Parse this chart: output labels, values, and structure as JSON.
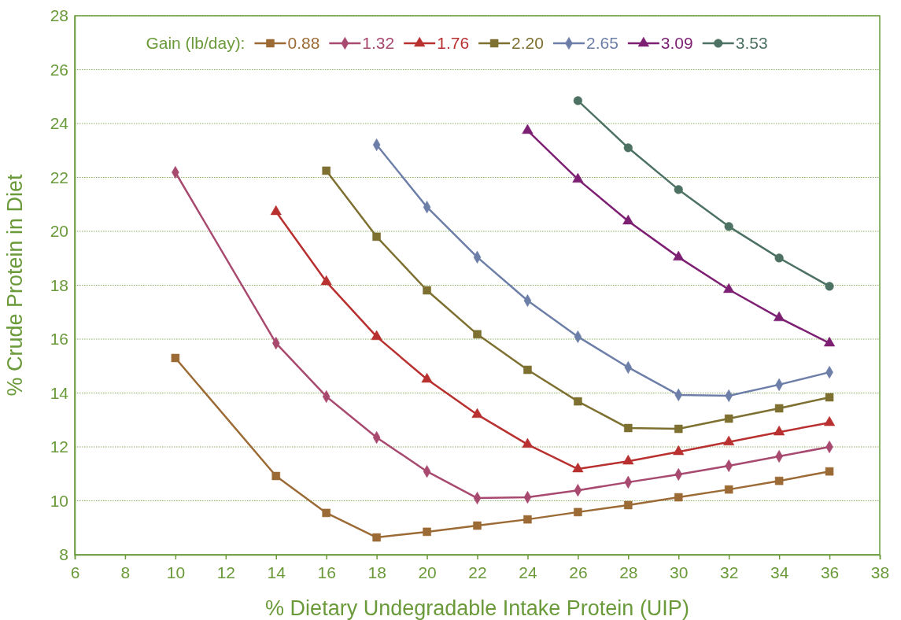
{
  "chart_data": {
    "type": "line",
    "xlabel": "% Dietary Undegradable Intake Protein (UIP)",
    "ylabel": "% Crude Protein in Diet",
    "legend_title": "Gain (lb/day):",
    "legend": "top",
    "grid": "y",
    "line_style": "solid",
    "xlim": [
      6,
      38
    ],
    "xticks": [
      6,
      8,
      10,
      12,
      14,
      16,
      18,
      20,
      22,
      24,
      26,
      28,
      30,
      32,
      34,
      36,
      38
    ],
    "ylim": [
      8,
      28
    ],
    "yticks": [
      8,
      10,
      12,
      14,
      16,
      18,
      20,
      22,
      24,
      26,
      28
    ],
    "series": [
      {
        "name": "0.88",
        "color": "#9c6a35",
        "marker": "square",
        "x": [
          10,
          14,
          16,
          18,
          20,
          22,
          24,
          26,
          28,
          30,
          32,
          34,
          36
        ],
        "values": [
          15.3,
          10.92,
          9.55,
          8.64,
          8.85,
          9.08,
          9.31,
          9.58,
          9.84,
          10.13,
          10.42,
          10.74,
          11.09
        ]
      },
      {
        "name": "1.32",
        "color": "#a8496f",
        "marker": "diamond",
        "x": [
          10,
          14,
          16,
          18,
          20,
          22,
          24,
          26,
          28,
          30,
          32,
          34,
          36
        ],
        "values": [
          22.19,
          15.85,
          13.87,
          12.35,
          11.09,
          10.1,
          10.13,
          10.39,
          10.69,
          10.98,
          11.3,
          11.65,
          12.0
        ]
      },
      {
        "name": "1.76",
        "color": "#b8302f",
        "marker": "triangle",
        "x": [
          14,
          16,
          18,
          20,
          22,
          24,
          26,
          28,
          30,
          32,
          34,
          36
        ],
        "values": [
          20.73,
          18.13,
          16.09,
          14.51,
          13.2,
          12.09,
          11.18,
          11.47,
          11.82,
          12.18,
          12.55,
          12.9
        ]
      },
      {
        "name": "2.20",
        "color": "#7d7030",
        "marker": "square",
        "x": [
          16,
          18,
          20,
          22,
          24,
          26,
          28,
          30,
          32,
          34,
          36
        ],
        "values": [
          22.25,
          19.8,
          17.81,
          16.18,
          14.86,
          13.69,
          12.7,
          12.67,
          13.05,
          13.43,
          13.84
        ]
      },
      {
        "name": "2.65",
        "color": "#6d7fa8",
        "marker": "diamond",
        "x": [
          18,
          20,
          22,
          24,
          26,
          28,
          30,
          32,
          34,
          36
        ],
        "values": [
          23.21,
          20.9,
          19.04,
          17.43,
          16.09,
          14.95,
          13.93,
          13.9,
          14.31,
          14.77
        ]
      },
      {
        "name": "3.09",
        "color": "#7d1f73",
        "marker": "triangle",
        "x": [
          24,
          26,
          28,
          30,
          32,
          34,
          36
        ],
        "values": [
          23.74,
          21.93,
          20.38,
          19.04,
          17.84,
          16.79,
          15.85
        ]
      },
      {
        "name": "3.53",
        "color": "#4d7263",
        "marker": "circle",
        "x": [
          26,
          28,
          30,
          32,
          34,
          36
        ],
        "values": [
          24.85,
          23.1,
          21.55,
          20.18,
          19.01,
          17.96
        ]
      }
    ]
  }
}
